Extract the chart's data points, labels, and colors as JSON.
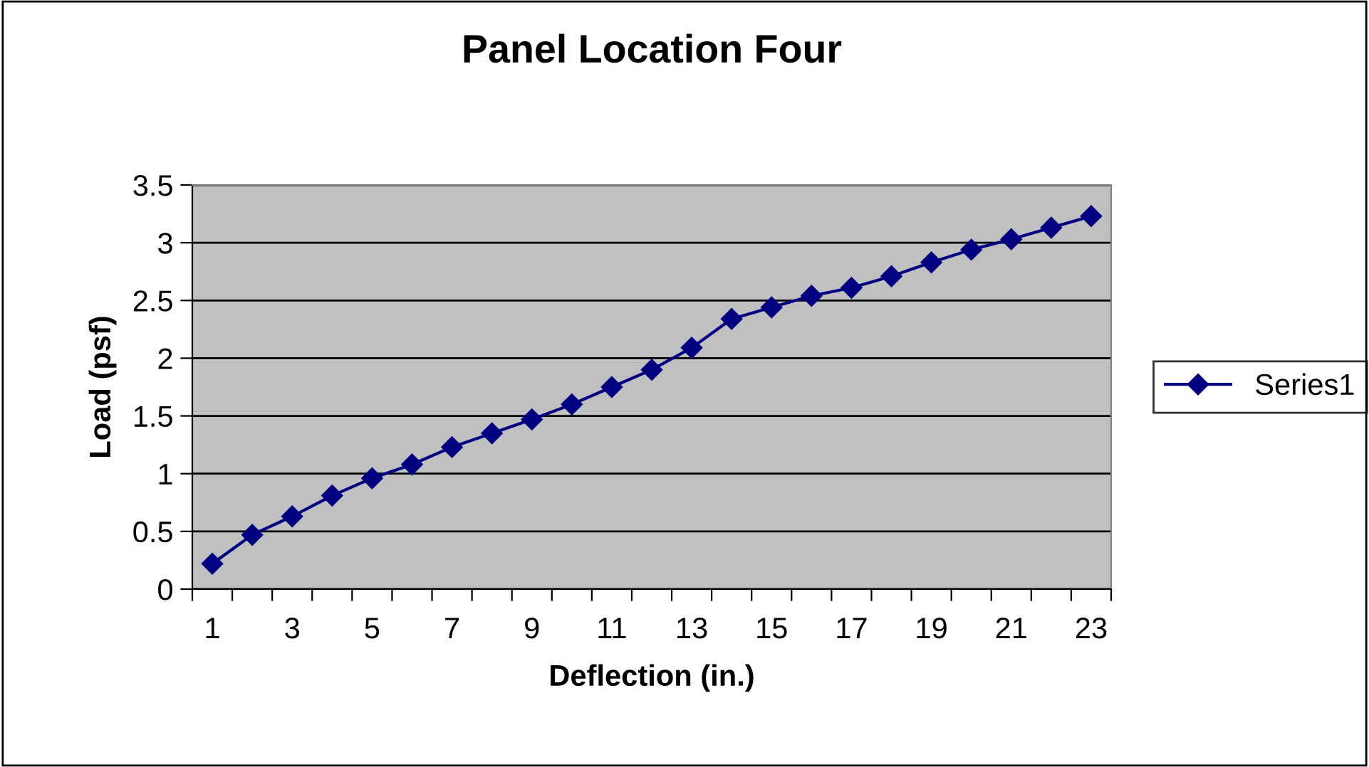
{
  "chart_data": {
    "type": "line",
    "title": "Panel Location Four",
    "xlabel": "Deflection (in.)",
    "ylabel": "Load (psf)",
    "categories": [
      "1",
      null,
      "3",
      null,
      "5",
      null,
      "7",
      null,
      "9",
      null,
      "11",
      null,
      "13",
      null,
      "15",
      null,
      "17",
      null,
      "19",
      null,
      "21",
      null,
      "23"
    ],
    "series": [
      {
        "name": "Series1",
        "color": "#000080",
        "values": [
          0.22,
          0.47,
          0.63,
          0.81,
          0.96,
          1.08,
          1.23,
          1.35,
          1.47,
          1.6,
          1.75,
          1.9,
          2.09,
          2.34,
          2.44,
          2.54,
          2.61,
          2.71,
          2.83,
          2.94,
          3.03,
          3.13,
          3.23
        ]
      }
    ],
    "ylim": [
      0,
      3.5
    ],
    "yticks": [
      0,
      0.5,
      1,
      1.5,
      2,
      2.5,
      3,
      3.5
    ],
    "grid": "y",
    "legend": "right",
    "marker": "diamond",
    "line_style": "solid"
  }
}
